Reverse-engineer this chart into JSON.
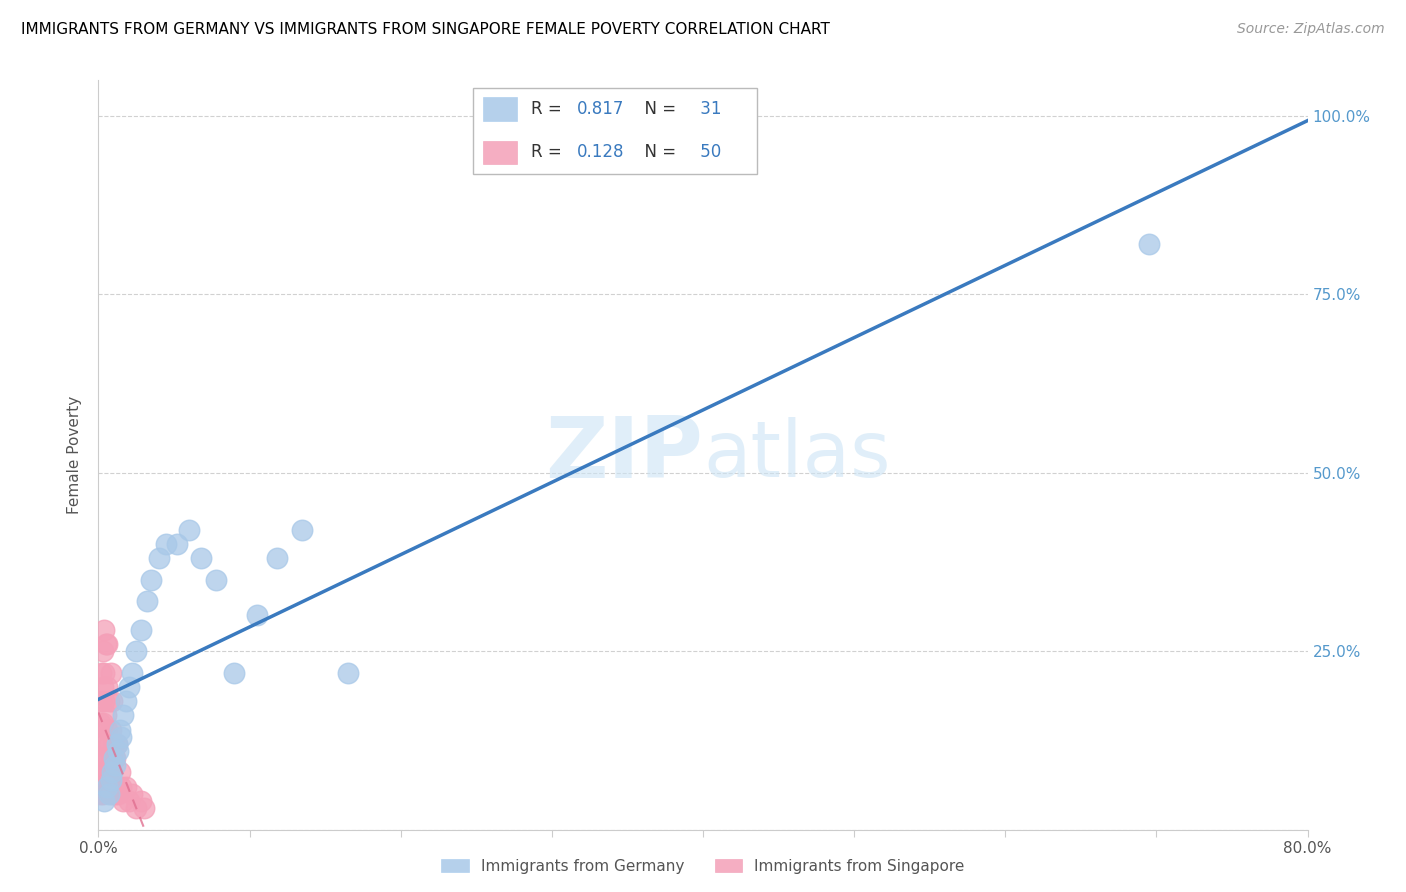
{
  "title": "IMMIGRANTS FROM GERMANY VS IMMIGRANTS FROM SINGAPORE FEMALE POVERTY CORRELATION CHART",
  "source": "Source: ZipAtlas.com",
  "ylabel": "Female Poverty",
  "watermark": "ZIPatlas",
  "xlim": [
    0.0,
    0.8
  ],
  "ylim": [
    0.0,
    1.05
  ],
  "xtick_positions": [
    0.0,
    0.1,
    0.2,
    0.3,
    0.4,
    0.5,
    0.6,
    0.7,
    0.8
  ],
  "xticklabels": [
    "0.0%",
    "",
    "",
    "",
    "",
    "",
    "",
    "",
    "80.0%"
  ],
  "ytick_positions": [
    0.0,
    0.25,
    0.5,
    0.75,
    1.0
  ],
  "yticklabels_right": [
    "",
    "25.0%",
    "50.0%",
    "75.0%",
    "100.0%"
  ],
  "germany_R": 0.817,
  "germany_N": 31,
  "singapore_R": 0.128,
  "singapore_N": 50,
  "germany_color": "#a8c8e8",
  "singapore_color": "#f4a0b8",
  "germany_line_color": "#3a7abf",
  "singapore_line_color": "#e07090",
  "grid_color": "#cccccc",
  "right_axis_color": "#5599cc",
  "legend_text_color": "#333333",
  "legend_value_color": "#3a7abf",
  "germany_x": [
    0.004,
    0.006,
    0.007,
    0.008,
    0.009,
    0.01,
    0.011,
    0.012,
    0.013,
    0.014,
    0.015,
    0.016,
    0.018,
    0.02,
    0.022,
    0.025,
    0.028,
    0.032,
    0.035,
    0.04,
    0.045,
    0.052,
    0.06,
    0.068,
    0.078,
    0.09,
    0.105,
    0.118,
    0.135,
    0.165,
    0.695
  ],
  "germany_y": [
    0.04,
    0.06,
    0.05,
    0.07,
    0.08,
    0.1,
    0.09,
    0.12,
    0.11,
    0.14,
    0.13,
    0.16,
    0.18,
    0.2,
    0.22,
    0.25,
    0.28,
    0.32,
    0.35,
    0.38,
    0.4,
    0.4,
    0.42,
    0.38,
    0.35,
    0.22,
    0.3,
    0.38,
    0.42,
    0.22,
    0.82
  ],
  "singapore_x": [
    0.001,
    0.001,
    0.001,
    0.002,
    0.002,
    0.002,
    0.002,
    0.003,
    0.003,
    0.003,
    0.003,
    0.003,
    0.004,
    0.004,
    0.004,
    0.004,
    0.004,
    0.005,
    0.005,
    0.005,
    0.005,
    0.006,
    0.006,
    0.006,
    0.006,
    0.007,
    0.007,
    0.007,
    0.008,
    0.008,
    0.008,
    0.009,
    0.009,
    0.009,
    0.01,
    0.01,
    0.011,
    0.011,
    0.012,
    0.012,
    0.013,
    0.014,
    0.015,
    0.016,
    0.018,
    0.02,
    0.022,
    0.025,
    0.028,
    0.03
  ],
  "singapore_y": [
    0.05,
    0.1,
    0.15,
    0.08,
    0.12,
    0.18,
    0.22,
    0.05,
    0.1,
    0.15,
    0.2,
    0.25,
    0.08,
    0.12,
    0.18,
    0.22,
    0.28,
    0.06,
    0.1,
    0.16,
    0.26,
    0.08,
    0.14,
    0.2,
    0.26,
    0.06,
    0.12,
    0.18,
    0.08,
    0.14,
    0.22,
    0.05,
    0.1,
    0.18,
    0.06,
    0.12,
    0.05,
    0.1,
    0.06,
    0.12,
    0.05,
    0.08,
    0.06,
    0.04,
    0.06,
    0.04,
    0.05,
    0.03,
    0.04,
    0.03
  ]
}
